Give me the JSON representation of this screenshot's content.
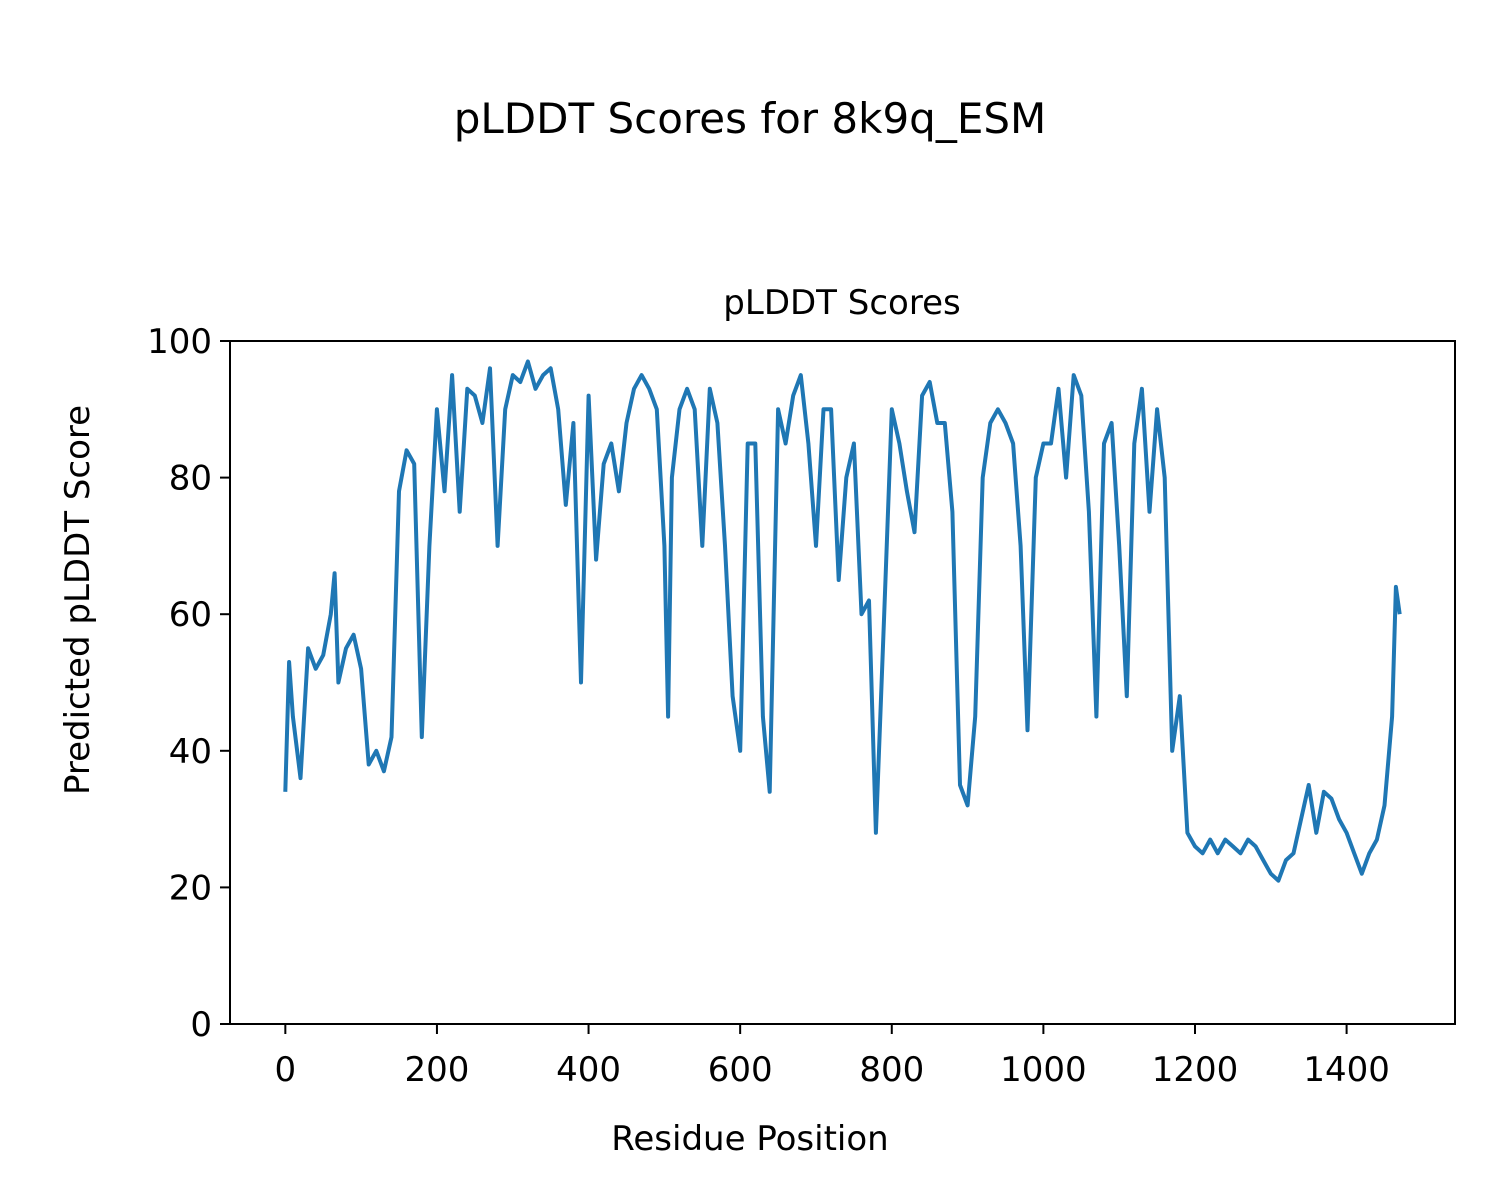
{
  "chart_data": {
    "type": "line",
    "suptitle": "pLDDT Scores for 8k9q_ESM",
    "title": "pLDDT Scores",
    "xlabel": "Residue Position",
    "ylabel": "Predicted pLDDT Score",
    "xlim": [
      -73,
      1543
    ],
    "ylim": [
      0,
      100
    ],
    "xticks": [
      0,
      200,
      400,
      600,
      800,
      1000,
      1200,
      1400
    ],
    "yticks": [
      0,
      20,
      40,
      60,
      80,
      100
    ],
    "grid": false,
    "color": "#1f77b4",
    "series": [
      {
        "name": "pLDDT",
        "x": [
          0,
          5,
          10,
          20,
          30,
          40,
          50,
          60,
          65,
          70,
          80,
          90,
          100,
          110,
          120,
          130,
          140,
          150,
          160,
          170,
          180,
          190,
          200,
          210,
          220,
          230,
          240,
          250,
          260,
          270,
          280,
          290,
          300,
          310,
          320,
          330,
          340,
          350,
          360,
          370,
          380,
          390,
          400,
          410,
          420,
          430,
          440,
          450,
          460,
          470,
          480,
          490,
          500,
          505,
          510,
          520,
          530,
          540,
          550,
          560,
          570,
          580,
          590,
          600,
          610,
          620,
          630,
          639,
          650,
          660,
          670,
          680,
          690,
          700,
          710,
          720,
          730,
          740,
          750,
          760,
          770,
          779,
          790,
          800,
          810,
          820,
          830,
          840,
          850,
          860,
          870,
          880,
          890,
          900,
          910,
          920,
          930,
          940,
          950,
          960,
          970,
          979,
          990,
          1000,
          1010,
          1020,
          1030,
          1040,
          1050,
          1060,
          1070,
          1080,
          1090,
          1100,
          1110,
          1120,
          1130,
          1140,
          1150,
          1160,
          1170,
          1180,
          1190,
          1200,
          1210,
          1220,
          1230,
          1240,
          1250,
          1260,
          1270,
          1280,
          1290,
          1300,
          1310,
          1320,
          1330,
          1340,
          1350,
          1360,
          1370,
          1380,
          1390,
          1400,
          1410,
          1420,
          1430,
          1440,
          1450,
          1460,
          1465,
          1470
        ],
        "y": [
          34,
          53,
          45,
          36,
          55,
          52,
          54,
          60,
          66,
          50,
          55,
          57,
          52,
          38,
          40,
          37,
          42,
          78,
          84,
          82,
          42,
          70,
          90,
          78,
          95,
          75,
          93,
          92,
          88,
          96,
          70,
          90,
          95,
          94,
          97,
          93,
          95,
          96,
          90,
          76,
          88,
          50,
          92,
          68,
          82,
          85,
          78,
          88,
          93,
          95,
          93,
          90,
          70,
          45,
          80,
          90,
          93,
          90,
          70,
          93,
          88,
          70,
          48,
          40,
          85,
          85,
          45,
          34,
          90,
          85,
          92,
          95,
          85,
          70,
          90,
          90,
          65,
          80,
          85,
          60,
          62,
          28,
          60,
          90,
          85,
          78,
          72,
          92,
          94,
          88,
          88,
          75,
          35,
          32,
          45,
          80,
          88,
          90,
          88,
          85,
          70,
          43,
          80,
          85,
          85,
          93,
          80,
          95,
          92,
          75,
          45,
          85,
          88,
          70,
          48,
          85,
          93,
          75,
          90,
          80,
          40,
          48,
          28,
          26,
          25,
          27,
          25,
          27,
          26,
          25,
          27,
          26,
          24,
          22,
          21,
          24,
          25,
          30,
          35,
          28,
          34,
          33,
          30,
          28,
          25,
          22,
          25,
          27,
          32,
          45,
          64,
          60
        ]
      }
    ]
  }
}
